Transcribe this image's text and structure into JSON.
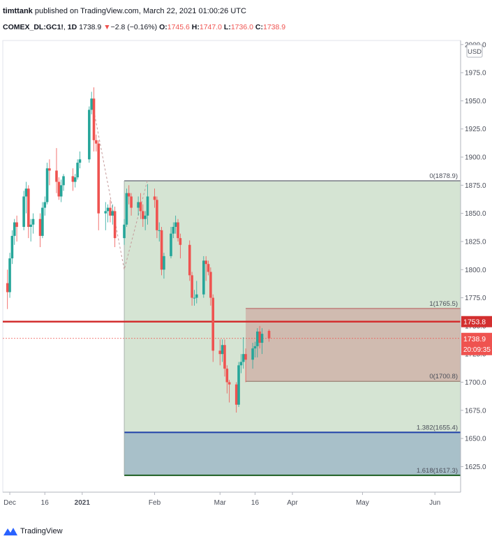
{
  "header": {
    "author": "timttank",
    "published_text": "published on TradingView.com, March 22, 2021 01:00:26 UTC",
    "symbol": "COMEX_DL:GC1!",
    "interval": "1D",
    "last": "1738.9",
    "change": "−2.8 (−0.16%)",
    "open_label": "O:",
    "open": "1745.6",
    "high_label": "H:",
    "high": "1747.0",
    "low_label": "L:",
    "low": "1736.0",
    "close_label": "C:",
    "close": "1738.9"
  },
  "footer": {
    "brand": "TradingView"
  },
  "colors": {
    "up": "#26a69a",
    "down": "#ef5350",
    "green_zone": "#d5e4d3",
    "red_zone": "#cfb4a9",
    "blue_zone": "#a8c0c9",
    "red_line": "#d32f2f",
    "blue_line": "#1e3fa8",
    "green_line": "#1b5e20"
  },
  "chart_data": {
    "type": "candlestick",
    "currency": "USD",
    "ylim": [
      1600,
      2000
    ],
    "yticks": [
      1625,
      1650,
      1675,
      1700,
      1725,
      1750,
      1775,
      1800,
      1825,
      1850,
      1875,
      1900,
      1925,
      1950,
      1975,
      2000
    ],
    "ytick_labels": [
      "1625.0",
      "1650.0",
      "1675.0",
      "1700.0",
      "1725.0",
      "1750.0",
      "1775.0",
      "1800.0",
      "1825.0",
      "1850.0",
      "1875.0",
      "1900.0",
      "1925.0",
      "1950.0",
      "1975.0",
      "2000.0"
    ],
    "xlim": [
      "2020-11-28",
      "2021-06-12"
    ],
    "xticks": [
      {
        "date": "2020-12-01",
        "label": "Dec",
        "bold": false
      },
      {
        "date": "2020-12-16",
        "label": "16",
        "bold": false
      },
      {
        "date": "2021-01-01",
        "label": "2021",
        "bold": true
      },
      {
        "date": "2021-02-01",
        "label": "Feb",
        "bold": false
      },
      {
        "date": "2021-03-01",
        "label": "Mar",
        "bold": false
      },
      {
        "date": "2021-03-16",
        "label": "16",
        "bold": false
      },
      {
        "date": "2021-04-01",
        "label": "Apr",
        "bold": false
      },
      {
        "date": "2021-05-01",
        "label": "May",
        "bold": false
      },
      {
        "date": "2021-06-01",
        "label": "Jun",
        "bold": false
      }
    ],
    "candles": [
      {
        "d": "2020-11-30",
        "o": 1788,
        "h": 1800,
        "l": 1765,
        "c": 1780
      },
      {
        "d": "2020-12-01",
        "o": 1780,
        "h": 1815,
        "l": 1775,
        "c": 1810
      },
      {
        "d": "2020-12-02",
        "o": 1810,
        "h": 1835,
        "l": 1805,
        "c": 1830
      },
      {
        "d": "2020-12-03",
        "o": 1830,
        "h": 1845,
        "l": 1822,
        "c": 1842
      },
      {
        "d": "2020-12-04",
        "o": 1842,
        "h": 1848,
        "l": 1825,
        "c": 1838
      },
      {
        "d": "2020-12-07",
        "o": 1838,
        "h": 1870,
        "l": 1835,
        "c": 1865
      },
      {
        "d": "2020-12-08",
        "o": 1865,
        "h": 1878,
        "l": 1850,
        "c": 1872
      },
      {
        "d": "2020-12-09",
        "o": 1872,
        "h": 1875,
        "l": 1828,
        "c": 1838
      },
      {
        "d": "2020-12-10",
        "o": 1838,
        "h": 1845,
        "l": 1825,
        "c": 1840
      },
      {
        "d": "2020-12-11",
        "o": 1840,
        "h": 1850,
        "l": 1832,
        "c": 1845
      },
      {
        "d": "2020-12-14",
        "o": 1845,
        "h": 1850,
        "l": 1820,
        "c": 1830
      },
      {
        "d": "2020-12-15",
        "o": 1830,
        "h": 1860,
        "l": 1828,
        "c": 1855
      },
      {
        "d": "2020-12-16",
        "o": 1855,
        "h": 1865,
        "l": 1848,
        "c": 1860
      },
      {
        "d": "2020-12-17",
        "o": 1860,
        "h": 1895,
        "l": 1858,
        "c": 1890
      },
      {
        "d": "2020-12-18",
        "o": 1890,
        "h": 1898,
        "l": 1875,
        "c": 1888
      },
      {
        "d": "2020-12-21",
        "o": 1888,
        "h": 1908,
        "l": 1868,
        "c": 1878
      },
      {
        "d": "2020-12-22",
        "o": 1878,
        "h": 1882,
        "l": 1862,
        "c": 1865
      },
      {
        "d": "2020-12-23",
        "o": 1865,
        "h": 1880,
        "l": 1860,
        "c": 1875
      },
      {
        "d": "2020-12-24",
        "o": 1875,
        "h": 1885,
        "l": 1870,
        "c": 1883
      },
      {
        "d": "2020-12-28",
        "o": 1883,
        "h": 1890,
        "l": 1870,
        "c": 1878
      },
      {
        "d": "2020-12-29",
        "o": 1878,
        "h": 1885,
        "l": 1873,
        "c": 1882
      },
      {
        "d": "2020-12-30",
        "o": 1882,
        "h": 1898,
        "l": 1880,
        "c": 1895
      },
      {
        "d": "2020-12-31",
        "o": 1895,
        "h": 1905,
        "l": 1890,
        "c": 1898
      },
      {
        "d": "2021-01-04",
        "o": 1898,
        "h": 1945,
        "l": 1895,
        "c": 1942
      },
      {
        "d": "2021-01-05",
        "o": 1942,
        "h": 1958,
        "l": 1938,
        "c": 1952
      },
      {
        "d": "2021-01-06",
        "o": 1952,
        "h": 1962,
        "l": 1905,
        "c": 1915
      },
      {
        "d": "2021-01-07",
        "o": 1915,
        "h": 1920,
        "l": 1905,
        "c": 1912
      },
      {
        "d": "2021-01-08",
        "o": 1912,
        "h": 1915,
        "l": 1835,
        "c": 1850
      },
      {
        "d": "2021-01-11",
        "o": 1850,
        "h": 1860,
        "l": 1835,
        "c": 1852
      },
      {
        "d": "2021-01-12",
        "o": 1852,
        "h": 1858,
        "l": 1842,
        "c": 1855
      },
      {
        "d": "2021-01-13",
        "o": 1855,
        "h": 1862,
        "l": 1842,
        "c": 1848
      },
      {
        "d": "2021-01-14",
        "o": 1848,
        "h": 1858,
        "l": 1840,
        "c": 1852
      },
      {
        "d": "2021-01-15",
        "o": 1852,
        "h": 1856,
        "l": 1820,
        "c": 1828
      },
      {
        "d": "2021-01-19",
        "o": 1828,
        "h": 1845,
        "l": 1822,
        "c": 1840
      },
      {
        "d": "2021-01-20",
        "o": 1840,
        "h": 1872,
        "l": 1838,
        "c": 1868
      },
      {
        "d": "2021-01-21",
        "o": 1868,
        "h": 1875,
        "l": 1858,
        "c": 1865
      },
      {
        "d": "2021-01-22",
        "o": 1865,
        "h": 1868,
        "l": 1848,
        "c": 1855
      },
      {
        "d": "2021-01-25",
        "o": 1855,
        "h": 1865,
        "l": 1848,
        "c": 1860
      },
      {
        "d": "2021-01-26",
        "o": 1860,
        "h": 1868,
        "l": 1845,
        "c": 1852
      },
      {
        "d": "2021-01-27",
        "o": 1852,
        "h": 1858,
        "l": 1838,
        "c": 1845
      },
      {
        "d": "2021-01-28",
        "o": 1845,
        "h": 1852,
        "l": 1835,
        "c": 1848
      },
      {
        "d": "2021-01-29",
        "o": 1848,
        "h": 1876,
        "l": 1840,
        "c": 1865
      },
      {
        "d": "2021-02-01",
        "o": 1865,
        "h": 1872,
        "l": 1855,
        "c": 1862
      },
      {
        "d": "2021-02-02",
        "o": 1862,
        "h": 1865,
        "l": 1828,
        "c": 1835
      },
      {
        "d": "2021-02-03",
        "o": 1835,
        "h": 1842,
        "l": 1825,
        "c": 1835
      },
      {
        "d": "2021-02-04",
        "o": 1835,
        "h": 1838,
        "l": 1795,
        "c": 1800
      },
      {
        "d": "2021-02-05",
        "o": 1800,
        "h": 1815,
        "l": 1792,
        "c": 1812
      },
      {
        "d": "2021-02-08",
        "o": 1812,
        "h": 1838,
        "l": 1810,
        "c": 1832
      },
      {
        "d": "2021-02-09",
        "o": 1832,
        "h": 1842,
        "l": 1828,
        "c": 1838
      },
      {
        "d": "2021-02-10",
        "o": 1838,
        "h": 1848,
        "l": 1832,
        "c": 1842
      },
      {
        "d": "2021-02-11",
        "o": 1842,
        "h": 1845,
        "l": 1825,
        "c": 1828
      },
      {
        "d": "2021-02-12",
        "o": 1828,
        "h": 1832,
        "l": 1810,
        "c": 1822
      },
      {
        "d": "2021-02-16",
        "o": 1822,
        "h": 1826,
        "l": 1790,
        "c": 1795
      },
      {
        "d": "2021-02-17",
        "o": 1795,
        "h": 1798,
        "l": 1768,
        "c": 1775
      },
      {
        "d": "2021-02-18",
        "o": 1775,
        "h": 1782,
        "l": 1768,
        "c": 1775
      },
      {
        "d": "2021-02-19",
        "o": 1775,
        "h": 1790,
        "l": 1770,
        "c": 1778
      },
      {
        "d": "2021-02-22",
        "o": 1778,
        "h": 1812,
        "l": 1775,
        "c": 1808
      },
      {
        "d": "2021-02-23",
        "o": 1808,
        "h": 1812,
        "l": 1790,
        "c": 1805
      },
      {
        "d": "2021-02-24",
        "o": 1805,
        "h": 1808,
        "l": 1795,
        "c": 1798
      },
      {
        "d": "2021-02-25",
        "o": 1798,
        "h": 1802,
        "l": 1768,
        "c": 1775
      },
      {
        "d": "2021-02-26",
        "o": 1775,
        "h": 1778,
        "l": 1718,
        "c": 1728
      },
      {
        "d": "2021-03-01",
        "o": 1728,
        "h": 1738,
        "l": 1715,
        "c": 1725
      },
      {
        "d": "2021-03-02",
        "o": 1725,
        "h": 1738,
        "l": 1718,
        "c": 1733
      },
      {
        "d": "2021-03-03",
        "o": 1733,
        "h": 1738,
        "l": 1705,
        "c": 1712
      },
      {
        "d": "2021-03-04",
        "o": 1712,
        "h": 1715,
        "l": 1690,
        "c": 1700
      },
      {
        "d": "2021-03-05",
        "o": 1700,
        "h": 1702,
        "l": 1682,
        "c": 1698
      },
      {
        "d": "2021-03-08",
        "o": 1698,
        "h": 1700,
        "l": 1673,
        "c": 1680
      },
      {
        "d": "2021-03-09",
        "o": 1680,
        "h": 1718,
        "l": 1678,
        "c": 1715
      },
      {
        "d": "2021-03-10",
        "o": 1715,
        "h": 1725,
        "l": 1708,
        "c": 1718
      },
      {
        "d": "2021-03-11",
        "o": 1718,
        "h": 1740,
        "l": 1712,
        "c": 1725
      },
      {
        "d": "2021-03-12",
        "o": 1725,
        "h": 1730,
        "l": 1700,
        "c": 1720
      },
      {
        "d": "2021-03-15",
        "o": 1720,
        "h": 1735,
        "l": 1712,
        "c": 1730
      },
      {
        "d": "2021-03-16",
        "o": 1730,
        "h": 1736,
        "l": 1722,
        "c": 1732
      },
      {
        "d": "2021-03-17",
        "o": 1732,
        "h": 1748,
        "l": 1722,
        "c": 1745
      },
      {
        "d": "2021-03-18",
        "o": 1745,
        "h": 1750,
        "l": 1730,
        "c": 1735
      },
      {
        "d": "2021-03-19",
        "o": 1735,
        "h": 1748,
        "l": 1725,
        "c": 1743
      },
      {
        "d": "2021-03-22",
        "o": 1745.6,
        "h": 1747.0,
        "l": 1736.0,
        "c": 1738.9
      }
    ],
    "projection_path": [
      {
        "d": "2021-01-05",
        "v": 1952
      },
      {
        "d": "2021-01-19",
        "v": 1800
      },
      {
        "d": "2021-01-29",
        "v": 1880
      }
    ],
    "levels": [
      {
        "name": "fib-1-zone-a-top",
        "label": "0(1878.9)",
        "value": 1878.9
      },
      {
        "name": "fib-1-level-1",
        "label": "1(1765.5)",
        "value": 1765.5
      },
      {
        "name": "fib-2-level-0",
        "label": "0(1700.8)",
        "value": 1700.8
      },
      {
        "name": "fib-1382",
        "label": "1.382(1655.4)",
        "value": 1655.4
      },
      {
        "name": "fib-1618",
        "label": "1.618(1617.3)",
        "value": 1617.3
      }
    ],
    "zone_start": "2021-01-19",
    "red_zone_start": "2021-03-12",
    "horizontal_line": {
      "value": 1753.8,
      "label": "1753.8"
    },
    "last_price": {
      "value": 1738.9,
      "label": "1738.9",
      "countdown": "20:09:35"
    }
  }
}
